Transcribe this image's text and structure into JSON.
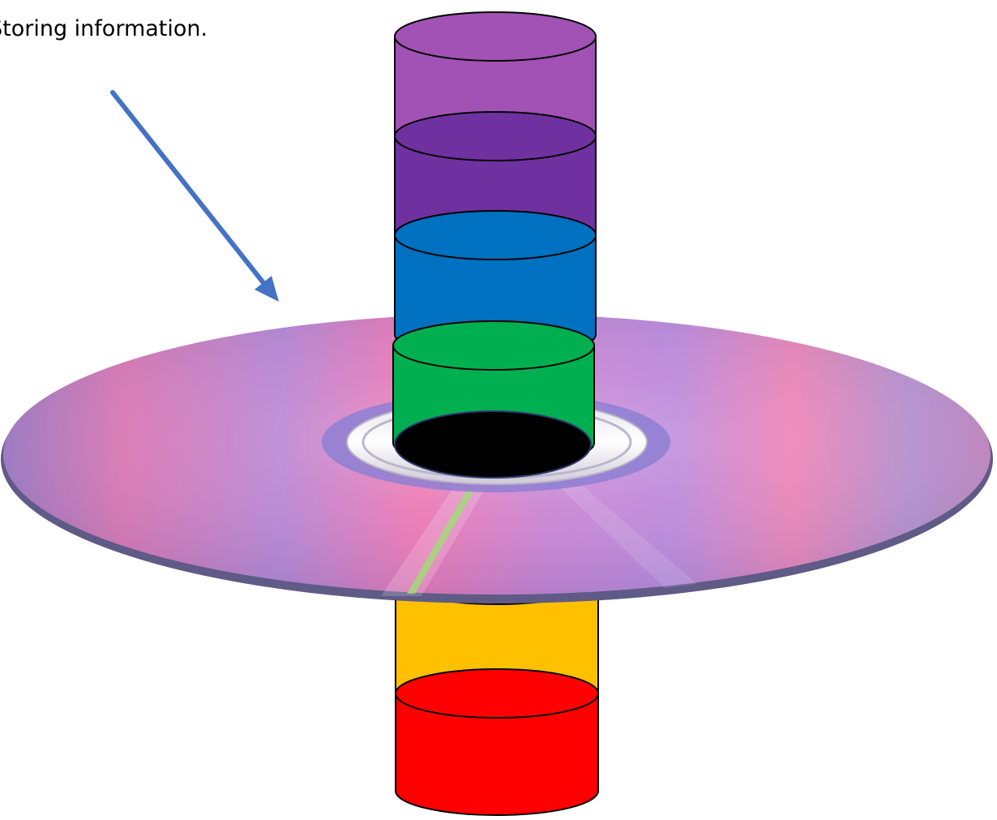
{
  "caption": "Storing information.",
  "colors": {
    "arrow": "#4472c4",
    "outline": "#000000",
    "hole": "#000000",
    "disc_base": "#c07fc6",
    "disc_rainbow_accent": "#a6d77a"
  },
  "stack_top": [
    {
      "name": "purple-light",
      "color": "#a252b5"
    },
    {
      "name": "purple-dark",
      "color": "#7031a0"
    },
    {
      "name": "blue",
      "color": "#0070c0"
    },
    {
      "name": "green",
      "color": "#00b050"
    }
  ],
  "stack_bottom": [
    {
      "name": "yellow",
      "color": "#ffc000"
    },
    {
      "name": "red",
      "color": "#ff0000"
    }
  ]
}
